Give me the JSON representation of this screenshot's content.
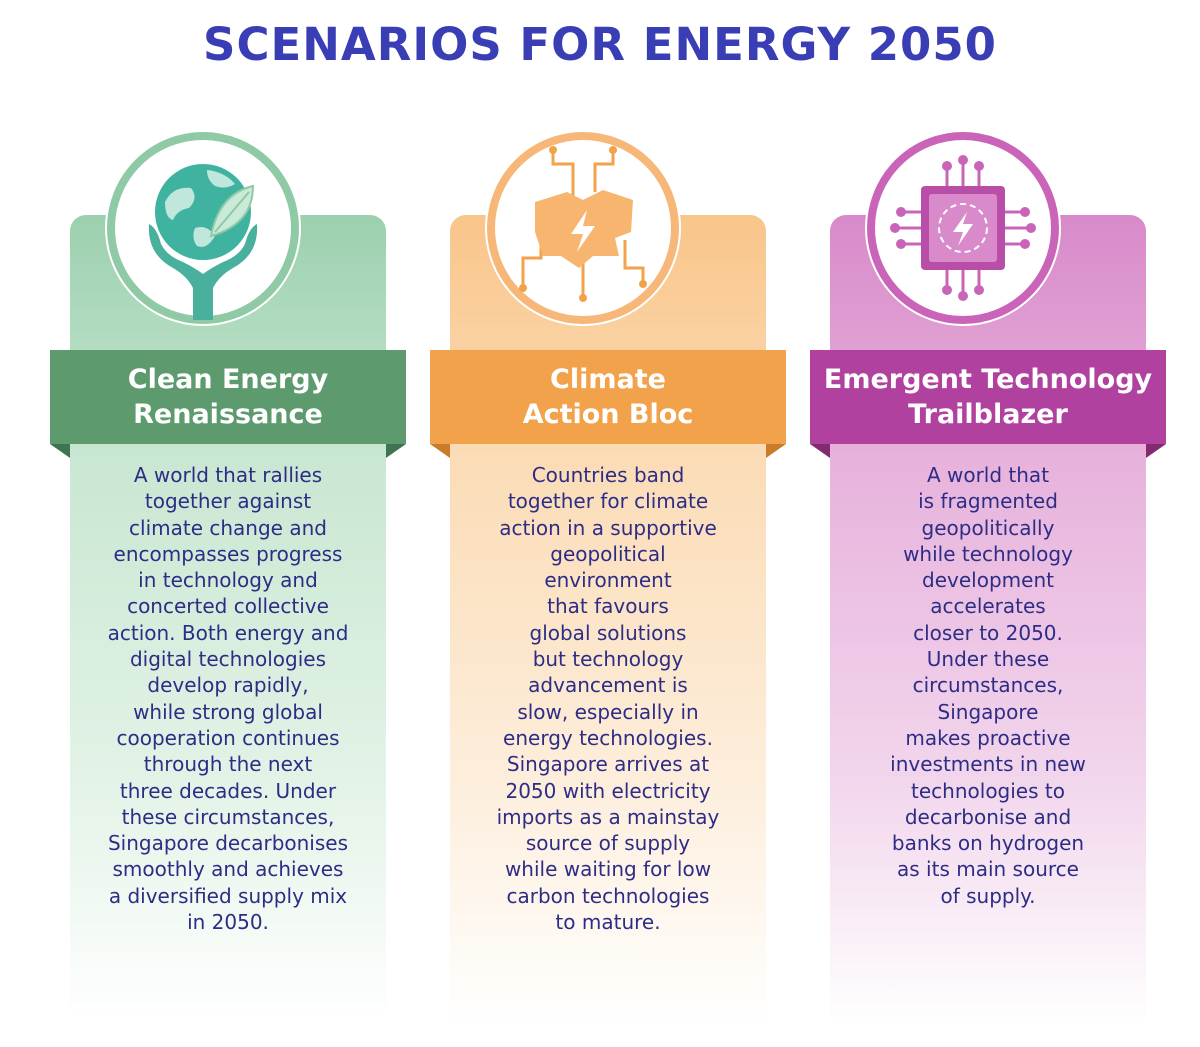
{
  "title": "SCENARIOS FOR ENERGY 2050",
  "scenarios": [
    {
      "title_lines": [
        "Clean Energy",
        "Renaissance"
      ],
      "icon": "hands-holding-globe-icon",
      "colors": {
        "banner": "#5d9b6f",
        "card_top": "#9bd0ae",
        "ring": "#8fc9a5"
      },
      "body_lines": [
        "A world that rallies",
        "together against",
        "climate change and",
        "encompasses progress",
        "in technology and",
        "concerted collective",
        "action. Both energy and",
        "digital technologies",
        "develop rapidly,",
        "while strong global",
        "cooperation continues",
        "through the next",
        "three decades. Under",
        "these circumstances,",
        "Singapore decarbonises",
        "smoothly and achieves",
        "a diversified supply mix",
        "in 2050."
      ]
    },
    {
      "title_lines": [
        "Climate",
        "Action Bloc"
      ],
      "icon": "connected-bloc-lightning-icon",
      "colors": {
        "banner": "#f2a24a",
        "card_top": "#f9c58a",
        "ring": "#f6b778"
      },
      "body_lines": [
        "Countries band",
        "together for climate",
        "action in a supportive",
        "geopolitical",
        "environment",
        "that favours",
        "global solutions",
        "but technology",
        "advancement is",
        "slow, especially in",
        "energy technologies.",
        "Singapore arrives at",
        "2050 with electricity",
        "imports as a mainstay",
        "source of supply",
        "while waiting for low",
        "carbon technologies",
        "to mature."
      ]
    },
    {
      "title_lines": [
        "Emergent Technology",
        "Trailblazer"
      ],
      "icon": "circuit-chip-lightning-icon",
      "colors": {
        "banner": "#b0419e",
        "card_top": "#d88ac9",
        "ring": "#c964b8"
      },
      "body_lines": [
        "A world that",
        "is fragmented",
        "geopolitically",
        "while technology",
        "development",
        "accelerates",
        "closer to 2050.",
        "Under these",
        "circumstances,",
        "Singapore",
        "makes proactive",
        "investments in new",
        "technologies to",
        "decarbonise and",
        "banks on hydrogen",
        "as its main source",
        "of supply."
      ]
    }
  ]
}
